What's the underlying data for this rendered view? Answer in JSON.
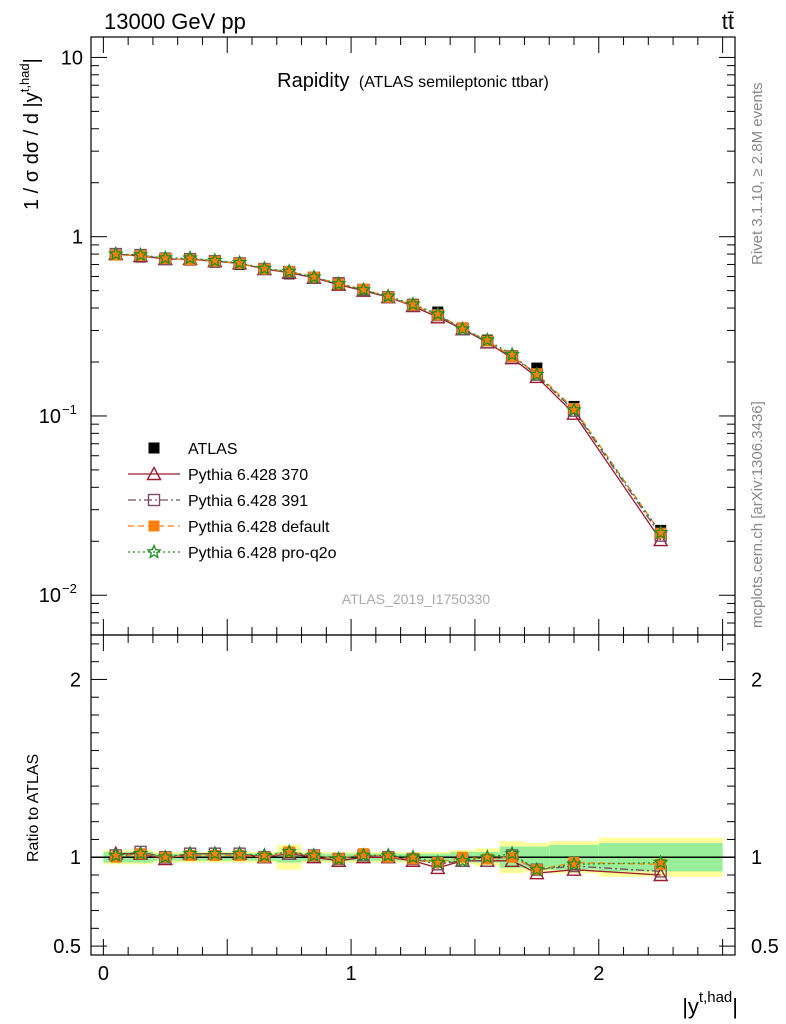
{
  "header": {
    "energy_label": "13000 GeV pp",
    "process_label": "tt̄"
  },
  "side_labels": {
    "rivet": "Rivet 3.1.10, ≥ 2.8M events",
    "mcplots": "mcplots.cern.ch [arXiv:1306.3436]"
  },
  "chart_data": [
    {
      "type": "scatter",
      "panel": "main",
      "title": "Rapidity",
      "subtitle": "(ATLAS semileptonic ttbar)",
      "analysis_id": "ATLAS_2019_I1750330",
      "ylabel": "1 / σ dσ / d |y^{t,had}|",
      "y_scale": "log",
      "ylim": [
        0.006,
        13
      ],
      "xlim": [
        -0.05,
        2.55
      ],
      "y_ticks": [
        {
          "value": 0.01,
          "label": "10",
          "exp": "−2"
        },
        {
          "value": 0.1,
          "label": "10",
          "exp": "−1"
        },
        {
          "value": 1,
          "label": "1",
          "exp": ""
        },
        {
          "value": 10,
          "label": "10",
          "exp": ""
        }
      ],
      "x": [
        0.05,
        0.15,
        0.25,
        0.35,
        0.45,
        0.55,
        0.65,
        0.75,
        0.85,
        0.95,
        1.05,
        1.15,
        1.25,
        1.35,
        1.45,
        1.55,
        1.65,
        1.75,
        1.9,
        2.25
      ],
      "series": [
        {
          "name": "ATLAS",
          "color": "#000000",
          "marker": "square-filled",
          "values": [
            0.79,
            0.77,
            0.76,
            0.74,
            0.72,
            0.7,
            0.66,
            0.62,
            0.59,
            0.55,
            0.5,
            0.46,
            0.42,
            0.38,
            0.31,
            0.265,
            0.215,
            0.185,
            0.113,
            0.023
          ]
        },
        {
          "name": "Pythia 6.428 370",
          "color": "#9b1b30",
          "marker": "triangle-open",
          "line": "solid",
          "values": [
            0.8,
            0.78,
            0.75,
            0.75,
            0.73,
            0.71,
            0.66,
            0.63,
            0.59,
            0.54,
            0.5,
            0.46,
            0.41,
            0.355,
            0.305,
            0.257,
            0.21,
            0.165,
            0.103,
            0.0203
          ]
        },
        {
          "name": "Pythia 6.428 391",
          "color": "#7a4a6a",
          "marker": "square-open",
          "line": "dashdot",
          "values": [
            0.8,
            0.79,
            0.75,
            0.75,
            0.73,
            0.71,
            0.66,
            0.635,
            0.59,
            0.55,
            0.505,
            0.46,
            0.415,
            0.365,
            0.305,
            0.258,
            0.215,
            0.17,
            0.107,
            0.0215
          ]
        },
        {
          "name": "Pythia 6.428 default",
          "color": "#ff7f0e",
          "marker": "square-filled",
          "line": "dashed",
          "values": [
            0.79,
            0.785,
            0.755,
            0.745,
            0.73,
            0.71,
            0.66,
            0.64,
            0.595,
            0.545,
            0.51,
            0.46,
            0.415,
            0.365,
            0.31,
            0.262,
            0.215,
            0.172,
            0.11,
            0.0222
          ]
        },
        {
          "name": "Pythia 6.428 pro-q2o",
          "color": "#1a8f1a",
          "marker": "star-open",
          "line": "dotted",
          "values": [
            0.8,
            0.79,
            0.76,
            0.76,
            0.735,
            0.715,
            0.665,
            0.64,
            0.595,
            0.545,
            0.505,
            0.465,
            0.42,
            0.37,
            0.305,
            0.265,
            0.22,
            0.17,
            0.108,
            0.0223
          ]
        }
      ]
    },
    {
      "type": "scatter",
      "panel": "ratio",
      "ylabel": "Ratio to ATLAS",
      "xlabel": "|y^{t,had}|",
      "ylim": [
        0.45,
        2.25
      ],
      "xlim": [
        -0.05,
        2.55
      ],
      "y_ticks": [
        {
          "value": 0.5,
          "label": "0.5"
        },
        {
          "value": 1,
          "label": "1"
        },
        {
          "value": 2,
          "label": "2"
        }
      ],
      "x_ticks": [
        {
          "value": 0,
          "label": "0"
        },
        {
          "value": 1,
          "label": "1"
        },
        {
          "value": 2,
          "label": "2"
        }
      ],
      "bin_edges": [
        0.0,
        0.1,
        0.2,
        0.3,
        0.4,
        0.5,
        0.6,
        0.7,
        0.8,
        0.9,
        1.0,
        1.1,
        1.2,
        1.3,
        1.4,
        1.5,
        1.6,
        1.7,
        1.8,
        2.0,
        2.5
      ],
      "band_inner": [
        0.03,
        0.03,
        0.02,
        0.02,
        0.02,
        0.02,
        0.02,
        0.03,
        0.02,
        0.02,
        0.02,
        0.02,
        0.02,
        0.02,
        0.03,
        0.03,
        0.06,
        0.06,
        0.07,
        0.08
      ],
      "band_outer": [
        0.04,
        0.04,
        0.03,
        0.03,
        0.03,
        0.03,
        0.03,
        0.07,
        0.03,
        0.03,
        0.03,
        0.03,
        0.03,
        0.03,
        0.04,
        0.05,
        0.09,
        0.08,
        0.09,
        0.11
      ],
      "x": [
        0.05,
        0.15,
        0.25,
        0.35,
        0.45,
        0.55,
        0.65,
        0.75,
        0.85,
        0.95,
        1.05,
        1.15,
        1.25,
        1.35,
        1.45,
        1.55,
        1.65,
        1.75,
        1.9,
        2.25
      ],
      "series": [
        {
          "name": "Pythia 6.428 370",
          "color": "#9b1b30",
          "marker": "triangle-open",
          "line": "solid",
          "values": [
            1.02,
            1.02,
            0.99,
            1.02,
            1.02,
            1.02,
            1.0,
            1.02,
            1.0,
            0.98,
            1.0,
            1.0,
            0.98,
            0.94,
            0.98,
            0.98,
            0.98,
            0.91,
            0.93,
            0.9
          ]
        },
        {
          "name": "Pythia 6.428 391",
          "color": "#7a4a6a",
          "marker": "square-open",
          "line": "dashdot",
          "values": [
            1.01,
            1.03,
            1.0,
            1.02,
            1.02,
            1.02,
            1.0,
            1.02,
            1.01,
            0.99,
            1.01,
            1.0,
            0.99,
            0.96,
            0.98,
            0.98,
            1.01,
            0.93,
            0.95,
            0.92
          ]
        },
        {
          "name": "Pythia 6.428 default",
          "color": "#ff7f0e",
          "marker": "square-filled",
          "line": "dashed",
          "values": [
            1.0,
            1.02,
            1.0,
            1.01,
            1.01,
            1.01,
            1.0,
            1.03,
            1.01,
            0.99,
            1.02,
            1.0,
            0.99,
            0.97,
            1.0,
            0.99,
            1.0,
            0.93,
            0.97,
            0.96
          ]
        },
        {
          "name": "Pythia 6.428 pro-q2o",
          "color": "#1a8f1a",
          "marker": "star-open",
          "line": "dotted",
          "values": [
            1.01,
            1.02,
            1.0,
            1.02,
            1.02,
            1.02,
            1.01,
            1.03,
            1.01,
            0.99,
            1.01,
            1.01,
            1.0,
            0.97,
            0.98,
            1.0,
            1.02,
            0.93,
            0.96,
            0.97
          ]
        }
      ]
    }
  ]
}
